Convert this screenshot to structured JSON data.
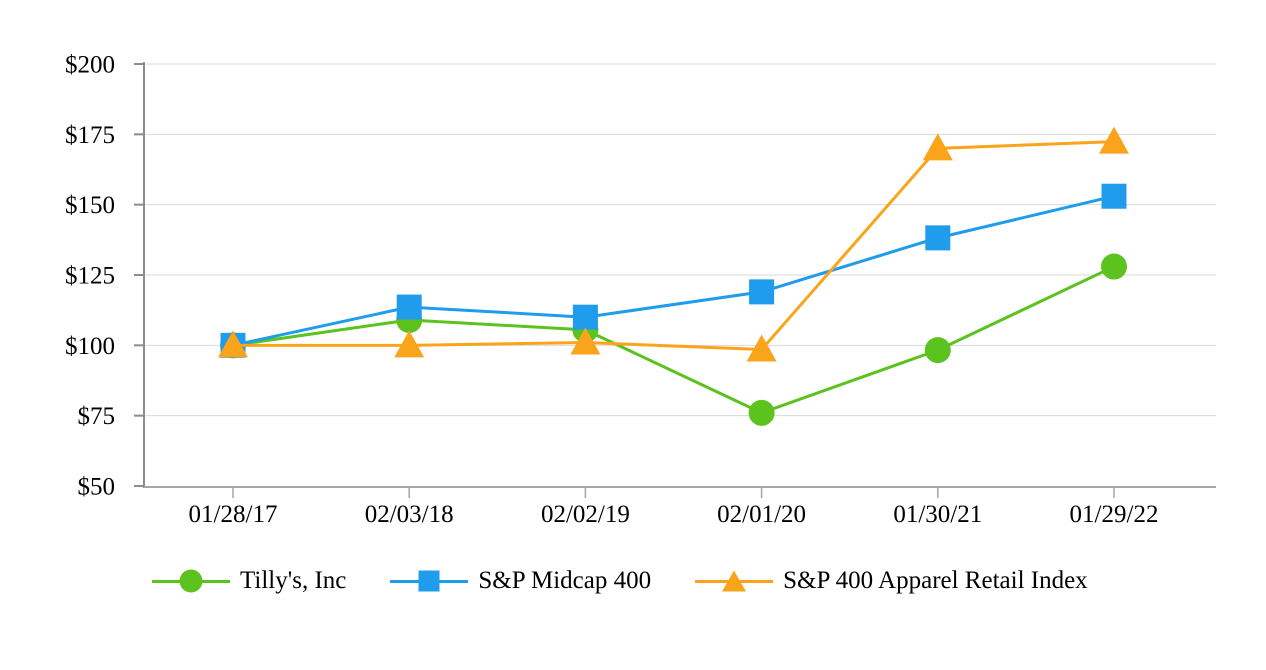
{
  "page": {
    "background_color": "#ffffff",
    "description": "Total stockholder return comparison line chart"
  },
  "chart_data": {
    "type": "line",
    "title": "",
    "x_categories": [
      "01/28/17",
      "02/03/18",
      "02/02/19",
      "02/01/20",
      "01/30/21",
      "01/29/22"
    ],
    "ylim": [
      50,
      200
    ],
    "ytick_step": 25,
    "yticks": [
      {
        "value": 200,
        "label": "$200"
      },
      {
        "value": 175,
        "label": "$175"
      },
      {
        "value": 150,
        "label": "$150"
      },
      {
        "value": 125,
        "label": "$125"
      },
      {
        "value": 100,
        "label": "$100"
      },
      {
        "value": 75,
        "label": "$75"
      },
      {
        "value": 50,
        "label": "$50"
      }
    ],
    "grid": "horizontal",
    "legend_position": "bottom",
    "colors": {
      "gridline": "#d9d9d9",
      "y_axis": "#8c8c8c",
      "x_axis": "#a6a6a6",
      "text": "#000000"
    },
    "series": [
      {
        "name": "Tilly's, Inc",
        "marker": "circle",
        "color": "#5cc21e",
        "values": [
          100,
          109,
          105.5,
          76,
          98.3,
          128
        ]
      },
      {
        "name": "S&P Midcap 400",
        "marker": "square",
        "color": "#1f9ceb",
        "values": [
          100,
          113.6,
          110,
          119,
          138.2,
          153
        ]
      },
      {
        "name": "S&P 400 Apparel Retail Index",
        "marker": "triangle",
        "color": "#faa41b",
        "values": [
          100,
          100,
          101,
          98.5,
          170,
          172.4
        ]
      }
    ]
  }
}
